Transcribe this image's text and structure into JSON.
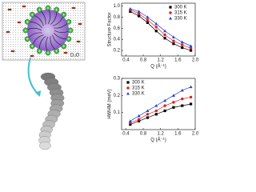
{
  "diagram": {
    "label": "D₂O"
  },
  "chart_data": [
    {
      "type": "scatter",
      "y_label": "Structure Factor",
      "x_label": "Q (Å⁻¹)",
      "x": [
        0.5,
        0.7,
        0.9,
        1.1,
        1.3,
        1.5,
        1.7,
        1.9
      ],
      "series": [
        {
          "name": "300 K",
          "color": "#000000",
          "marker": "square",
          "values": [
            0.9,
            0.82,
            0.7,
            0.55,
            0.42,
            0.32,
            0.25,
            0.2
          ]
        },
        {
          "name": "315 K",
          "color": "#e02020",
          "marker": "circle",
          "values": [
            0.93,
            0.86,
            0.75,
            0.62,
            0.48,
            0.37,
            0.3,
            0.24
          ]
        },
        {
          "name": "330 K",
          "color": "#2040d0",
          "marker": "triangle",
          "values": [
            0.95,
            0.9,
            0.8,
            0.68,
            0.55,
            0.44,
            0.35,
            0.28
          ]
        }
      ],
      "xlim": [
        0.3,
        2.0
      ],
      "xticks": [
        0.4,
        0.8,
        1.2,
        1.6,
        {
          "value": 2,
          "label": "2.0"
        }
      ],
      "ylim": [
        0.1,
        1.05
      ],
      "yticks": [
        0.2,
        0.4,
        0.6,
        0.8,
        {
          "value": 1,
          "label": "1.0"
        }
      ],
      "legend": "upper-right"
    },
    {
      "type": "scatter",
      "y_label": "HWHM (meV)",
      "x_label": "Q (Å⁻¹)",
      "x": [
        0.5,
        0.7,
        0.9,
        1.1,
        1.3,
        1.5,
        1.7,
        1.9
      ],
      "series": [
        {
          "name": "300 K",
          "color": "#000000",
          "marker": "square",
          "values": [
            0.03,
            0.05,
            0.07,
            0.09,
            0.11,
            0.13,
            0.14,
            0.15
          ]
        },
        {
          "name": "315 K",
          "color": "#e02020",
          "marker": "circle",
          "values": [
            0.04,
            0.06,
            0.09,
            0.11,
            0.14,
            0.16,
            0.18,
            0.19
          ]
        },
        {
          "name": "330 K",
          "color": "#2040d0",
          "marker": "triangle",
          "values": [
            0.05,
            0.08,
            0.11,
            0.14,
            0.17,
            0.2,
            0.23,
            0.25
          ]
        }
      ],
      "xlim": [
        0.3,
        2.0
      ],
      "xticks": [
        0.4,
        0.8,
        1.2,
        1.6,
        {
          "value": 2,
          "label": "2.0"
        }
      ],
      "ylim": [
        0,
        0.3
      ],
      "yticks": [
        0.1,
        0.2,
        0.3
      ],
      "legend": "upper-left"
    }
  ]
}
